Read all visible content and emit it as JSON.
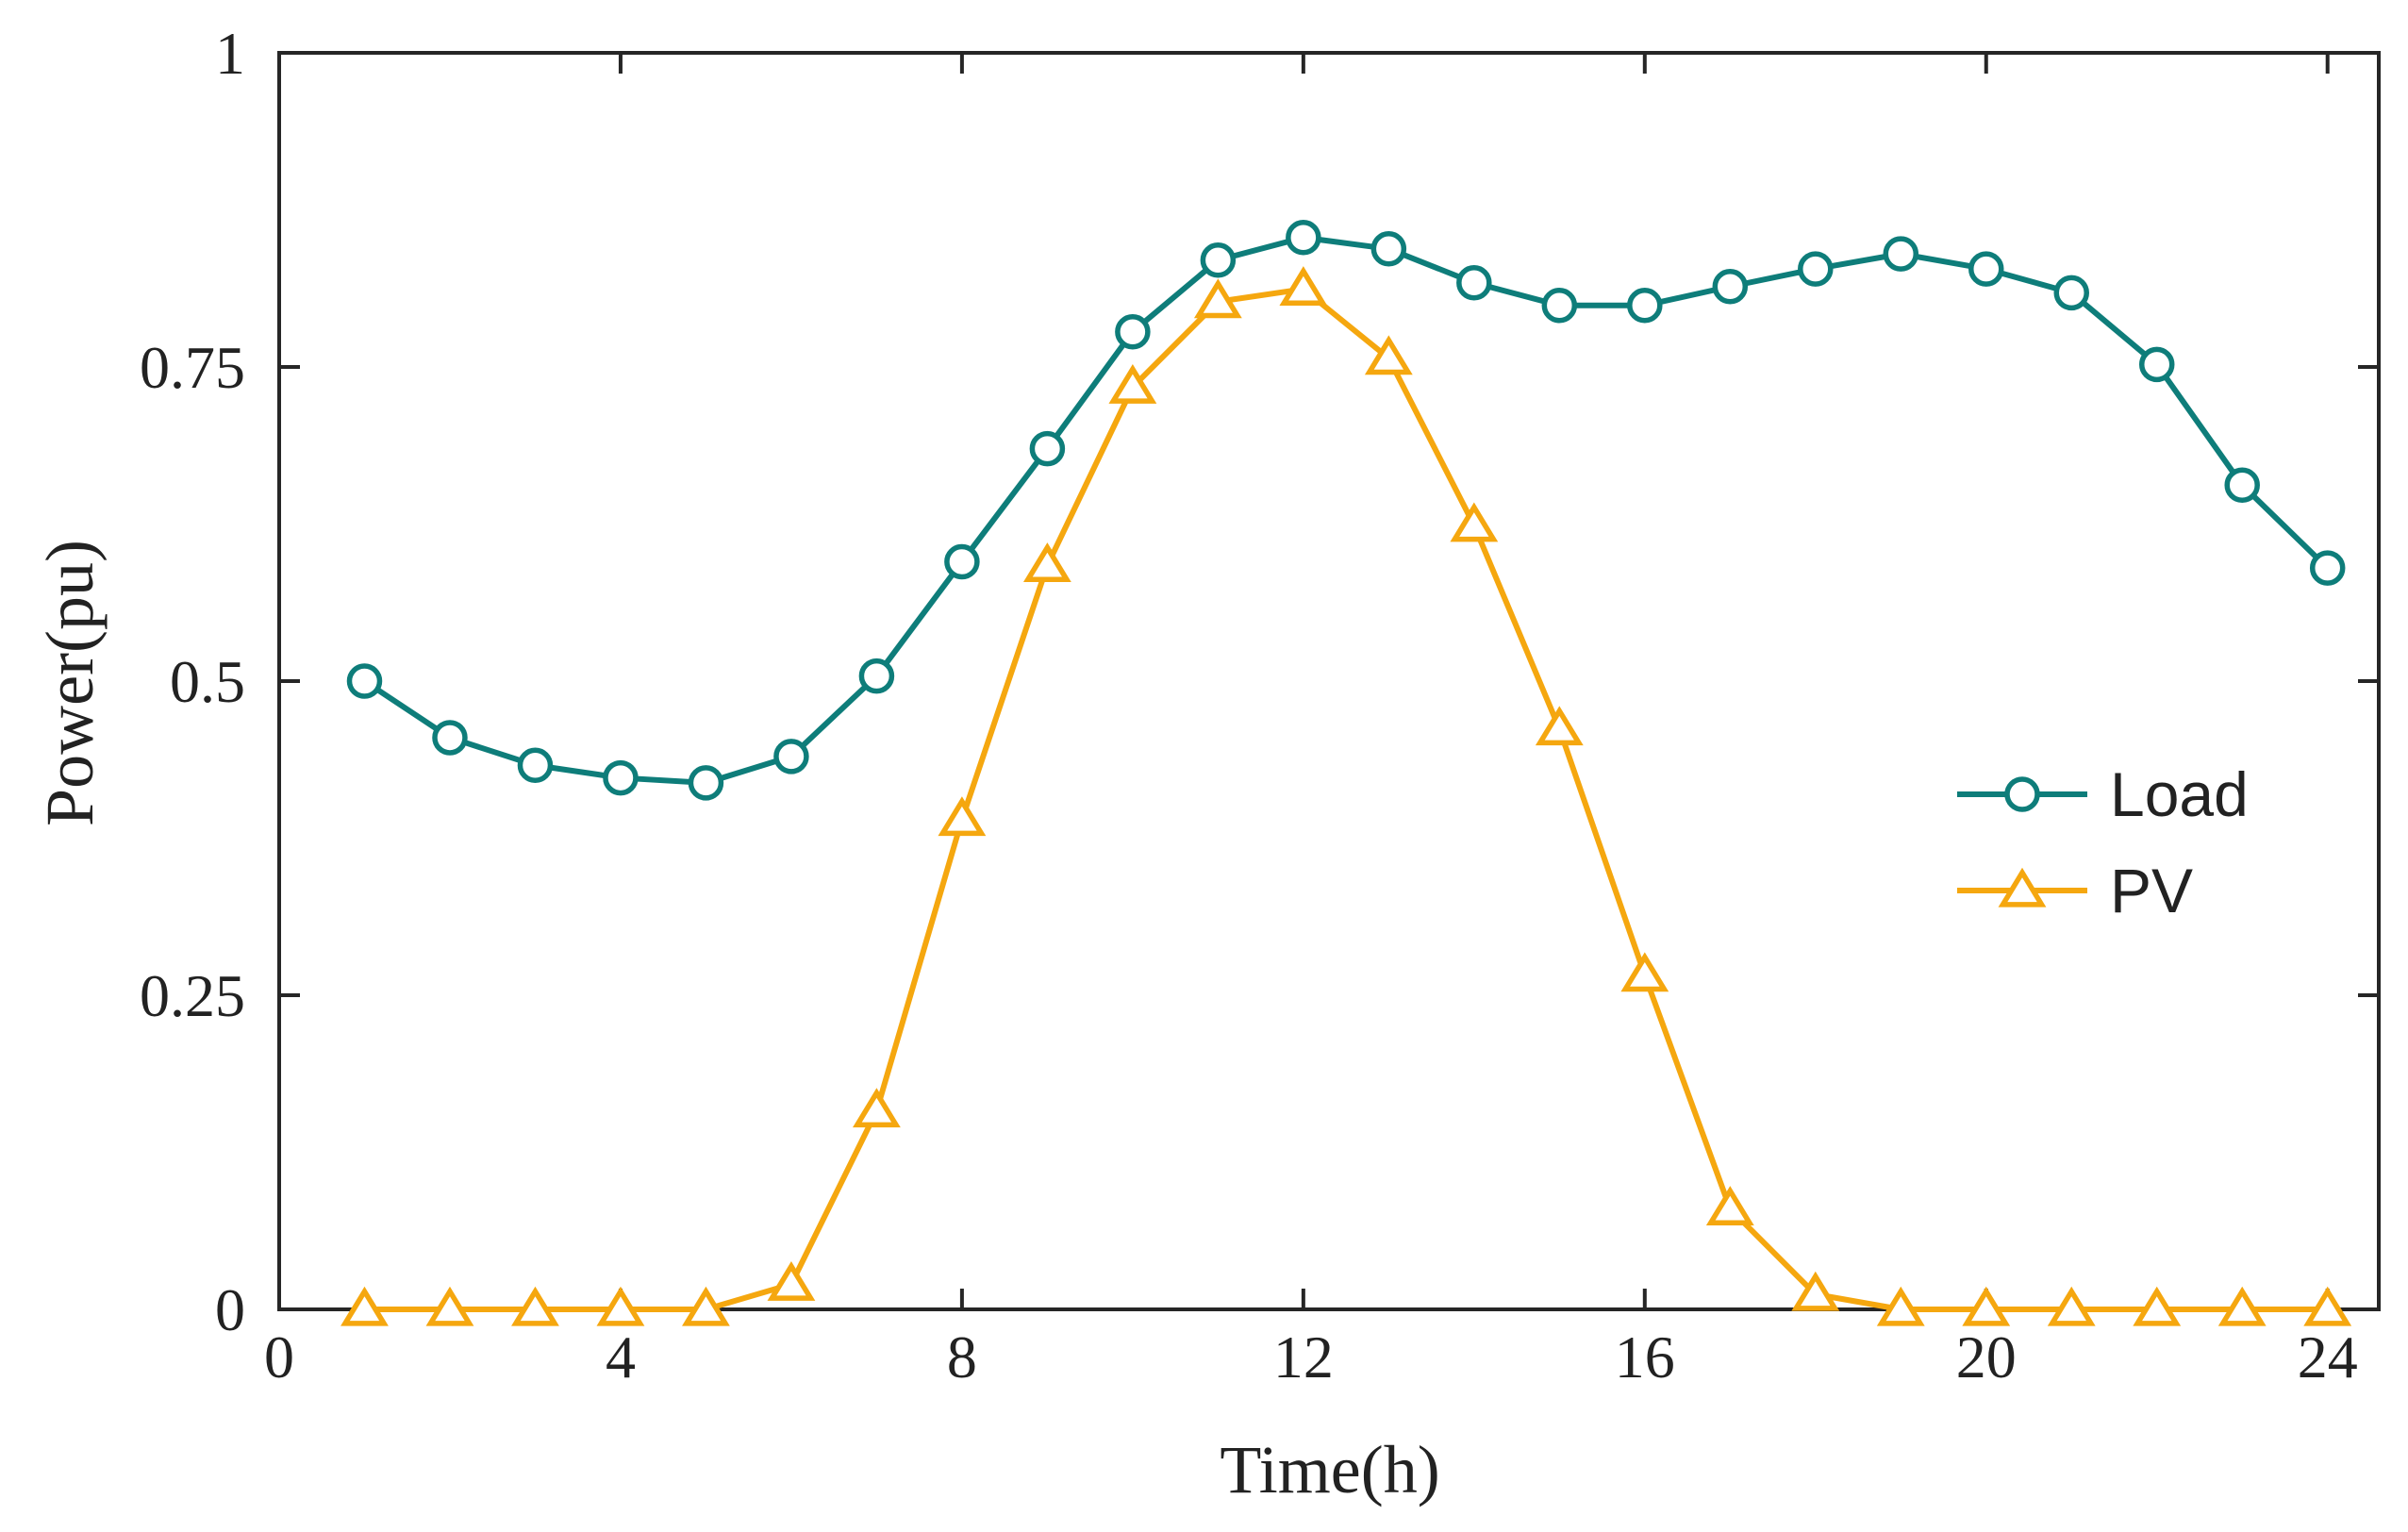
{
  "chart_data": {
    "type": "line",
    "title": "",
    "xlabel": "Time(h)",
    "ylabel": "Power(pu)",
    "xlim": [
      0,
      24.6
    ],
    "ylim": [
      0,
      1
    ],
    "xticks": [
      0,
      4,
      8,
      12,
      16,
      20,
      24
    ],
    "xtick_labels": [
      "0",
      "4",
      "8",
      "12",
      "16",
      "20",
      "24"
    ],
    "yticks": [
      0,
      0.25,
      0.5,
      0.75,
      1
    ],
    "ytick_labels": [
      "0",
      "0.25",
      "0.5",
      "0.75",
      "1"
    ],
    "grid": false,
    "legend_position": "right",
    "x": [
      1,
      2,
      3,
      4,
      5,
      6,
      7,
      8,
      9,
      10,
      11,
      12,
      13,
      14,
      15,
      16,
      17,
      18,
      19,
      20,
      21,
      22,
      23,
      24
    ],
    "series": [
      {
        "name": "Load",
        "color": "#0e7d7a",
        "marker": "circle",
        "values": [
          0.5,
          0.455,
          0.433,
          0.423,
          0.419,
          0.44,
          0.504,
          0.595,
          0.685,
          0.778,
          0.835,
          0.853,
          0.844,
          0.817,
          0.799,
          0.799,
          0.814,
          0.828,
          0.84,
          0.828,
          0.809,
          0.752,
          0.656,
          0.59
        ]
      },
      {
        "name": "PV",
        "color": "#f5a70f",
        "marker": "triangle",
        "values": [
          0,
          0,
          0,
          0,
          0,
          0.02,
          0.158,
          0.39,
          0.592,
          0.734,
          0.802,
          0.812,
          0.757,
          0.624,
          0.462,
          0.266,
          0.08,
          0.012,
          0,
          0,
          0,
          0,
          0,
          0
        ]
      }
    ]
  }
}
